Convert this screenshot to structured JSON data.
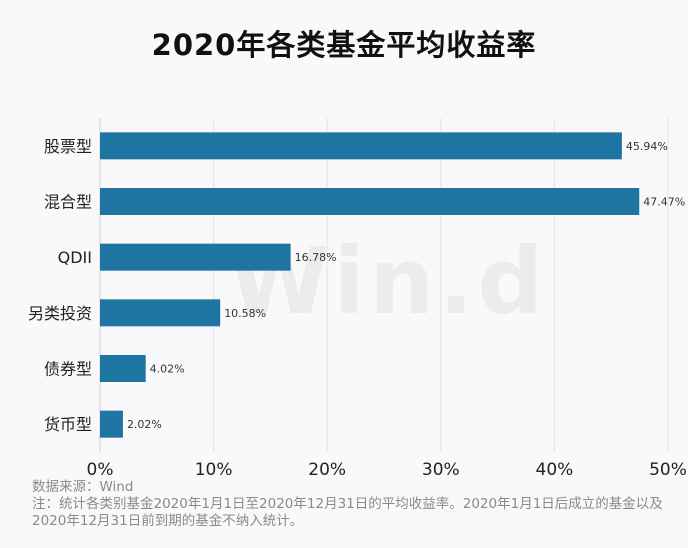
{
  "chart_data": {
    "type": "bar",
    "orientation": "horizontal",
    "title": "2020年各类基金平均收益率",
    "categories": [
      "股票型",
      "混合型",
      "QDII",
      "另类投资",
      "债券型",
      "货币型"
    ],
    "values": [
      45.94,
      47.47,
      16.78,
      10.58,
      4.02,
      2.02
    ],
    "value_labels": [
      "45.94%",
      "47.47%",
      "16.78%",
      "10.58%",
      "4.02%",
      "2.02%"
    ],
    "xlim": [
      0,
      50
    ],
    "x_ticks": [
      "0%",
      "10%",
      "20%",
      "30%",
      "40%",
      "50%"
    ],
    "grid": true,
    "bar_color": "#1f75a1"
  },
  "watermark": "Win.d",
  "footer": {
    "source": "数据来源：Wind",
    "note": "注：统计各类别基金2020年1月1日至2020年12月31日的平均收益率。2020年1月1日后成立的基金以及2020年12月31日前到期的基金不纳入统计。"
  }
}
